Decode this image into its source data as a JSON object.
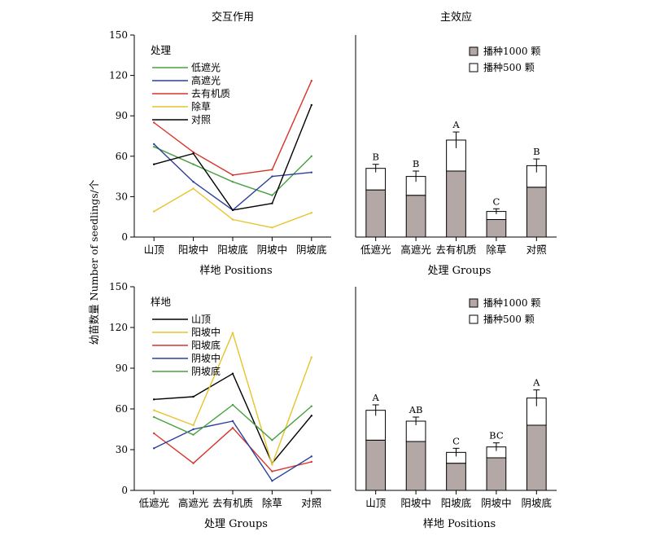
{
  "figure": {
    "ylabel": "幼苗数量 Number of seedlings/个"
  },
  "chart_data": [
    {
      "type": "line",
      "title": "交互作用",
      "xlabel": "样地 Positions",
      "ylabel": "幼苗数量 Number of seedlings/个",
      "ylim": [
        0,
        150
      ],
      "yticks": [
        0,
        30,
        60,
        90,
        120,
        150
      ],
      "categories": [
        "山顶",
        "阳坡中",
        "阳坡底",
        "阴坡中",
        "阴坡底"
      ],
      "legend_title": "处理",
      "legend_position": "top-left",
      "series": [
        {
          "name": "低遮光",
          "color": "#4aa041",
          "values": [
            67,
            54,
            41,
            31,
            60
          ]
        },
        {
          "name": "高遮光",
          "color": "#2b3f9a",
          "values": [
            69,
            41,
            20,
            45,
            48
          ]
        },
        {
          "name": "去有机质",
          "color": "#d8332a",
          "values": [
            85,
            63,
            46,
            50,
            116
          ]
        },
        {
          "name": "除草",
          "color": "#e8c32b",
          "values": [
            19,
            36,
            13,
            7,
            18
          ]
        },
        {
          "name": "对照",
          "color": "#000000",
          "values": [
            54,
            62,
            20,
            25,
            98
          ]
        }
      ]
    },
    {
      "type": "bar",
      "title": "主效应",
      "xlabel": "处理 Groups",
      "ylim": [
        0,
        150
      ],
      "categories": [
        "低遮光",
        "高遮光",
        "去有机质",
        "除草",
        "对照"
      ],
      "stacked": true,
      "legend_position": "top-right",
      "series": [
        {
          "name": "播种1000 颗",
          "color": "#b3a8a6",
          "values": [
            35,
            31,
            49,
            13,
            37
          ]
        },
        {
          "name": "播种500 颗",
          "color": "#ffffff",
          "values": [
            16,
            14,
            23,
            6,
            16
          ]
        }
      ],
      "totals": [
        51,
        45,
        72,
        19,
        53
      ],
      "errors": [
        3,
        4,
        6,
        2,
        5
      ],
      "significance": [
        "B",
        "B",
        "A",
        "C",
        "B"
      ]
    },
    {
      "type": "line",
      "xlabel": "处理 Groups",
      "ylabel": "幼苗数量 Number of seedlings/个",
      "ylim": [
        0,
        150
      ],
      "yticks": [
        0,
        30,
        60,
        90,
        120,
        150
      ],
      "categories": [
        "低遮光",
        "高遮光",
        "去有机质",
        "除草",
        "对照"
      ],
      "legend_title": "样地",
      "legend_position": "top-left",
      "series": [
        {
          "name": "山顶",
          "color": "#000000",
          "values": [
            67,
            69,
            86,
            20,
            55
          ]
        },
        {
          "name": "阳坡中",
          "color": "#e8c32b",
          "values": [
            59,
            48,
            116,
            19,
            98
          ]
        },
        {
          "name": "阳坡底",
          "color": "#d8332a",
          "values": [
            42,
            20,
            46,
            14,
            21
          ]
        },
        {
          "name": "阴坡中",
          "color": "#2b3f9a",
          "values": [
            31,
            45,
            51,
            7,
            25
          ]
        },
        {
          "name": "阴坡底",
          "color": "#4aa041",
          "values": [
            54,
            41,
            63,
            37,
            62
          ]
        }
      ]
    },
    {
      "type": "bar",
      "xlabel": "样地 Positions",
      "ylim": [
        0,
        150
      ],
      "categories": [
        "山顶",
        "阳坡中",
        "阳坡底",
        "阴坡中",
        "阴坡底"
      ],
      "stacked": true,
      "legend_position": "top-right",
      "series": [
        {
          "name": "播种1000 颗",
          "color": "#b3a8a6",
          "values": [
            37,
            36,
            20,
            24,
            48
          ]
        },
        {
          "name": "播种500 颗",
          "color": "#ffffff",
          "values": [
            22,
            15,
            8,
            8,
            20
          ]
        }
      ],
      "totals": [
        59,
        51,
        28,
        32,
        68
      ],
      "errors": [
        4,
        3,
        3,
        3,
        6
      ],
      "significance": [
        "A",
        "AB",
        "C",
        "BC",
        "A"
      ]
    }
  ]
}
